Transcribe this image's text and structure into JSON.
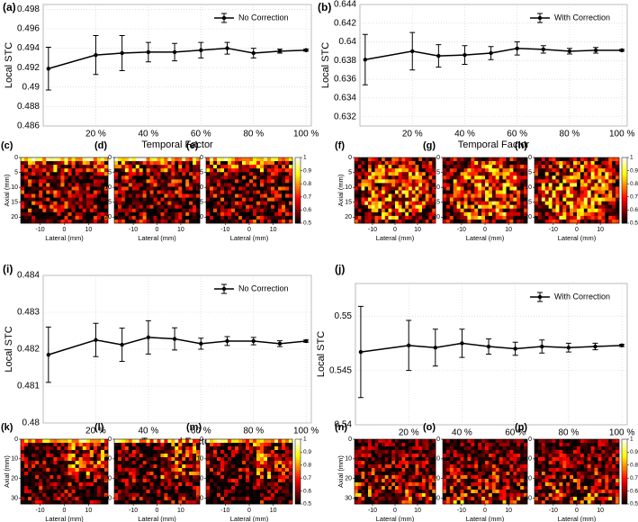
{
  "chart_data": [
    {
      "type": "line",
      "panel": "(a)",
      "xlabel": "Temporal Factor",
      "ylabel": "Local STC",
      "grid": true,
      "legend": "upper right",
      "x": [
        2,
        20,
        30,
        40,
        50,
        60,
        70,
        80,
        90,
        100
      ],
      "xlim": [
        0,
        102
      ],
      "xticks": [
        {
          "value": 20,
          "label": "20 %"
        },
        {
          "value": 40,
          "label": "40 %"
        },
        {
          "value": 60,
          "label": "60 %"
        },
        {
          "value": 80,
          "label": "80 %"
        },
        {
          "value": 100,
          "label": "100 %"
        }
      ],
      "ylim": [
        0.486,
        0.4985
      ],
      "yticks": [
        0.486,
        0.488,
        0.49,
        0.492,
        0.494,
        0.496,
        0.498
      ],
      "series": [
        {
          "name": "No Correction",
          "color": "#000000",
          "values": [
            0.4919,
            0.4933,
            0.4935,
            0.4936,
            0.4936,
            0.4938,
            0.494,
            0.4935,
            0.4937,
            0.4938
          ],
          "errors": [
            0.0022,
            0.002,
            0.0018,
            0.001,
            0.0009,
            0.0008,
            0.0006,
            0.0005,
            0.0002,
            0.0001
          ]
        }
      ]
    },
    {
      "type": "line",
      "panel": "(b)",
      "xlabel": "Temporal Factor",
      "ylabel": "Local STC",
      "grid": true,
      "legend": "upper right",
      "x": [
        2,
        20,
        30,
        40,
        50,
        60,
        70,
        80,
        90,
        100
      ],
      "xlim": [
        0,
        102
      ],
      "xticks": [
        {
          "value": 20,
          "label": "20 %"
        },
        {
          "value": 40,
          "label": "40 %"
        },
        {
          "value": 60,
          "label": "60 %"
        },
        {
          "value": 80,
          "label": "80 %"
        },
        {
          "value": 100,
          "label": "100 %"
        }
      ],
      "ylim": [
        0.631,
        0.644
      ],
      "yticks": [
        0.632,
        0.634,
        0.636,
        0.638,
        0.64,
        0.642,
        0.644
      ],
      "series": [
        {
          "name": "With Correction",
          "color": "#000000",
          "values": [
            0.6381,
            0.639,
            0.6385,
            0.6386,
            0.6388,
            0.6393,
            0.6392,
            0.639,
            0.6391,
            0.6391
          ],
          "errors": [
            0.0027,
            0.002,
            0.0012,
            0.001,
            0.0007,
            0.0007,
            0.0004,
            0.0003,
            0.0003,
            0.0001
          ]
        }
      ]
    },
    {
      "type": "heatmap",
      "panels": [
        "(c)",
        "(d)",
        "(e)"
      ],
      "xlabel": "Lateral (mm)",
      "ylabel": "Axial (mm)",
      "colormap": "hot",
      "xlim": [
        -18,
        18
      ],
      "xticks": [
        -10,
        0,
        10
      ],
      "ylim": [
        0,
        22
      ],
      "yticks": [
        0,
        5,
        10,
        15,
        20
      ],
      "clim": [
        0.5,
        1
      ],
      "cticks": [
        0.5,
        0.6,
        0.7,
        0.8,
        0.9,
        1
      ]
    },
    {
      "type": "heatmap",
      "panels": [
        "(f)",
        "(g)",
        "(h)"
      ],
      "xlabel": "Lateral (mm)",
      "ylabel": "Axial (mm)",
      "colormap": "hot",
      "xlim": [
        -18,
        18
      ],
      "xticks": [
        -10,
        0,
        10
      ],
      "ylim": [
        0,
        22
      ],
      "yticks": [
        0,
        5,
        10,
        15,
        20
      ],
      "clim": [
        0.5,
        1
      ],
      "cticks": [
        0.5,
        0.6,
        0.7,
        0.8,
        0.9,
        1
      ]
    },
    {
      "type": "line",
      "panel": "(i)",
      "xlabel": "Temporal Factor",
      "ylabel": "Local STC",
      "grid": true,
      "legend": "upper right",
      "x": [
        2,
        20,
        30,
        40,
        50,
        60,
        70,
        80,
        90,
        100
      ],
      "xlim": [
        0,
        102
      ],
      "xticks": [
        {
          "value": 20,
          "label": "20 %"
        },
        {
          "value": 40,
          "label": "40 %"
        },
        {
          "value": 60,
          "label": "60 %"
        },
        {
          "value": 80,
          "label": "80 %"
        },
        {
          "value": 100,
          "label": "100 %"
        }
      ],
      "ylim": [
        0.48,
        0.484
      ],
      "yticks": [
        0.48,
        0.481,
        0.482,
        0.483,
        0.484
      ],
      "series": [
        {
          "name": "No Correction",
          "color": "#000000",
          "values": [
            0.48185,
            0.48225,
            0.48212,
            0.48232,
            0.48228,
            0.48215,
            0.48222,
            0.48222,
            0.48215,
            0.48222
          ],
          "errors": [
            0.00075,
            0.00045,
            0.00045,
            0.00045,
            0.0003,
            0.00015,
            0.00012,
            0.0001,
            8e-05,
            3e-05
          ]
        }
      ]
    },
    {
      "type": "line",
      "panel": "(j)",
      "xlabel": "Temporal Factor",
      "ylabel": "Local STC",
      "grid": true,
      "legend": "upper right",
      "x": [
        2,
        20,
        30,
        40,
        50,
        60,
        70,
        80,
        90,
        100
      ],
      "xlim": [
        0,
        102
      ],
      "xticks": [
        {
          "value": 20,
          "label": "20 %"
        },
        {
          "value": 40,
          "label": "40 %"
        },
        {
          "value": 60,
          "label": "60 %"
        },
        {
          "value": 80,
          "label": "80 %"
        },
        {
          "value": 100,
          "label": "100 %"
        }
      ],
      "ylim": [
        0.54,
        0.553
      ],
      "yticks": [
        0.54,
        0.545,
        0.55
      ],
      "series": [
        {
          "name": "With Correction",
          "color": "#000000",
          "values": [
            0.5467,
            0.5473,
            0.5471,
            0.5475,
            0.5472,
            0.547,
            0.5472,
            0.5471,
            0.5472,
            0.5473
          ],
          "errors": [
            0.0042,
            0.0023,
            0.0017,
            0.0013,
            0.0007,
            0.0006,
            0.0006,
            0.0004,
            0.0003,
            0.0001
          ]
        }
      ]
    },
    {
      "type": "heatmap",
      "panels": [
        "(k)",
        "(l)",
        "(m)"
      ],
      "xlabel": "Lateral (mm)",
      "ylabel": "Axial (mm)",
      "colormap": "hot",
      "xlim": [
        -18,
        18
      ],
      "xticks": [
        -10,
        0,
        10
      ],
      "ylim": [
        0,
        33
      ],
      "yticks": [
        0,
        10,
        20,
        30
      ],
      "clim": [
        0.5,
        1
      ],
      "cticks": [
        0.5,
        0.6,
        0.7,
        0.8,
        0.9,
        1
      ]
    },
    {
      "type": "heatmap",
      "panels": [
        "(n)",
        "(o)",
        "(p)"
      ],
      "xlabel": "Lateral (mm)",
      "ylabel": "Axial (mm)",
      "colormap": "hot",
      "xlim": [
        -18,
        18
      ],
      "xticks": [
        -10,
        0,
        10
      ],
      "ylim": [
        0,
        33
      ],
      "yticks": [
        0,
        10,
        20,
        30
      ],
      "clim": [
        0.5,
        1
      ],
      "cticks": [
        0.5,
        0.6,
        0.7,
        0.8,
        0.9,
        1
      ]
    }
  ]
}
